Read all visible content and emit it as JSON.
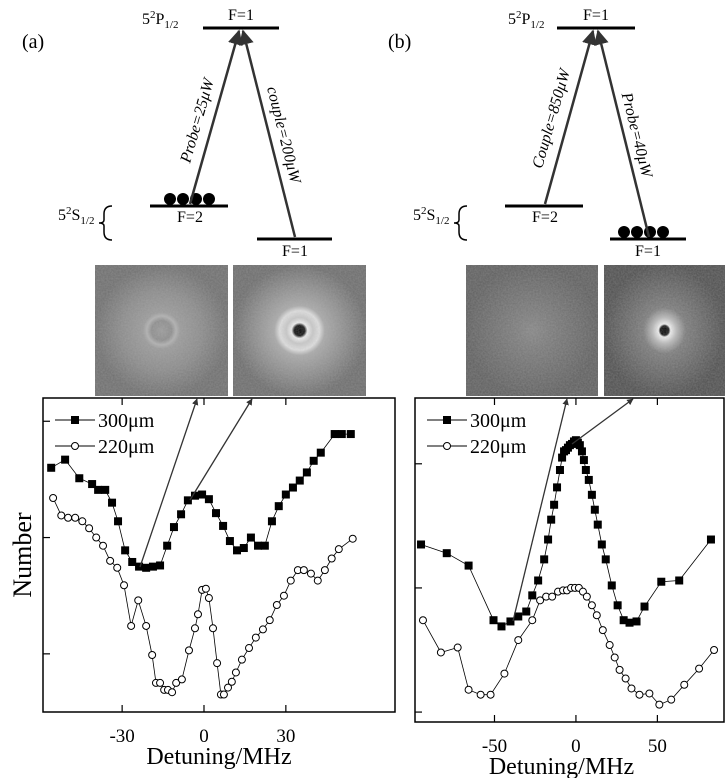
{
  "level_diagrams": [
    {
      "label": "(a)",
      "excited_state": {
        "n": "5",
        "sup": "2",
        "term": "P",
        "sub": "1/2"
      },
      "excited_level": "F=1",
      "ground_state": {
        "n": "5",
        "sup": "2",
        "term": "S",
        "sub": "1/2"
      },
      "ground_levels": [
        "F=2",
        "F=1"
      ],
      "beams": [
        "Probe=25μW",
        "couple=200μW"
      ]
    },
    {
      "label": "(b)",
      "excited_state": {
        "n": "5",
        "sup": "2",
        "term": "P",
        "sub": "1/2"
      },
      "excited_level": "F=1",
      "ground_state": {
        "n": "5",
        "sup": "2",
        "term": "S",
        "sub": "1/2"
      },
      "ground_levels": [
        "F=2",
        "F=1"
      ],
      "beams": [
        "Couple=850μW",
        "Probe=40μW"
      ]
    }
  ],
  "chart_data": [
    {
      "type": "line",
      "xlabel": "Detuning/MHz",
      "ylabel": "Number",
      "xlim": [
        -59,
        70
      ],
      "ylim": [
        0.5,
        3.2
      ],
      "xticks": [
        -30,
        0,
        30
      ],
      "yticks": [
        1,
        2,
        3
      ],
      "series": [
        {
          "name": "300μm",
          "color": "#000000",
          "marker": "square",
          "filled": true,
          "x": [
            -56,
            -50.9,
            -45.7,
            -41,
            -38.8,
            -36.2,
            -33.7,
            -31.5,
            -28.9,
            -26.3,
            -23.8,
            -21.2,
            -18.7,
            -16.1,
            -13.5,
            -11,
            -8.4,
            -5.9,
            -3.3,
            -0.7,
            1.8,
            4.4,
            7,
            9.5,
            12.1,
            14.6,
            17.2,
            19.8,
            22.3,
            24.9,
            27.4,
            30,
            32.6,
            35.1,
            37.7,
            40.2,
            42.8,
            47.9,
            50.5,
            53.8
          ],
          "values": [
            2.6,
            2.67,
            2.51,
            2.46,
            2.41,
            2.41,
            2.3,
            2.14,
            1.89,
            1.79,
            1.75,
            1.74,
            1.75,
            1.76,
            1.93,
            2.09,
            2.2,
            2.32,
            2.36,
            2.37,
            2.33,
            2.21,
            2.1,
            1.97,
            1.89,
            1.91,
            2.0,
            1.93,
            1.93,
            2.14,
            2.27,
            2.37,
            2.43,
            2.49,
            2.56,
            2.66,
            2.73,
            2.89,
            2.89,
            2.89
          ]
        },
        {
          "name": "220μm",
          "color": "#000000",
          "marker": "circle",
          "filled": false,
          "x": [
            -55.3,
            -52.3,
            -49.8,
            -47.2,
            -44.6,
            -42.1,
            -39.5,
            -37,
            -34.4,
            -31.8,
            -29.3,
            -26.7,
            -24.1,
            -21.2,
            -19,
            -17.6,
            -16.1,
            -14.6,
            -13.2,
            -11.7,
            -10.2,
            -8.1,
            -5.5,
            -3.3,
            -2.2,
            -0.7,
            0.7,
            1.8,
            3.3,
            4.8,
            6.2,
            7.3,
            8.8,
            10.2,
            11.7,
            13.9,
            16.5,
            19,
            21.6,
            24.1,
            26.7,
            29.3,
            31.8,
            34.4,
            36.6,
            39.2,
            41.7,
            44.3,
            46.8,
            49.4,
            54.5
          ],
          "values": [
            2.34,
            2.19,
            2.17,
            2.17,
            2.14,
            2.08,
            2.0,
            1.93,
            1.8,
            1.74,
            1.59,
            1.24,
            1.46,
            1.24,
            0.99,
            0.75,
            0.75,
            0.69,
            0.69,
            0.67,
            0.75,
            0.78,
            1.03,
            1.22,
            1.34,
            1.55,
            1.56,
            1.48,
            1.22,
            0.92,
            0.65,
            0.65,
            0.71,
            0.76,
            0.84,
            0.95,
            1.05,
            1.14,
            1.21,
            1.29,
            1.42,
            1.5,
            1.63,
            1.72,
            1.72,
            1.69,
            1.63,
            1.72,
            1.82,
            1.9,
            1.99
          ]
        }
      ]
    },
    {
      "type": "line",
      "xlabel": "Detuning/MHz",
      "xlim": [
        -98.8,
        90.9
      ],
      "ylim": [
        0.92,
        3.53
      ],
      "xticks": [
        -50,
        0,
        50
      ],
      "yticks": [
        1,
        2,
        3
      ],
      "series": [
        {
          "name": "300μm",
          "color": "#000000",
          "marker": "square",
          "filled": true,
          "x": [
            -95.1,
            -79.3,
            -65.9,
            -50.6,
            -45.7,
            -40.2,
            -35.4,
            -30.5,
            -26.8,
            -23.2,
            -19.5,
            -17.1,
            -15.2,
            -13.4,
            -11.6,
            -9.8,
            -8.5,
            -7.3,
            -6.1,
            -4.9,
            -3.7,
            -2.4,
            -1.2,
            0,
            1.2,
            2.4,
            3.7,
            4.9,
            6.1,
            7.9,
            9.8,
            11.6,
            13.4,
            15.9,
            18.3,
            22,
            25.6,
            29.3,
            32.9,
            37.2,
            42.1,
            52.4,
            63.4,
            82.9
          ],
          "values": [
            2.35,
            2.28,
            2.18,
            1.74,
            1.69,
            1.73,
            1.77,
            1.81,
            1.94,
            2.06,
            2.23,
            2.39,
            2.55,
            2.67,
            2.81,
            2.95,
            3.05,
            3.1,
            3.11,
            3.13,
            3.15,
            3.16,
            3.18,
            3.19,
            3.17,
            3.15,
            3.1,
            3.03,
            2.95,
            2.87,
            2.75,
            2.63,
            2.51,
            2.35,
            2.23,
            2.02,
            1.86,
            1.74,
            1.72,
            1.73,
            1.85,
            2.05,
            2.06,
            2.39
          ]
        },
        {
          "name": "220μm",
          "color": "#000000",
          "marker": "circle",
          "filled": false,
          "x": [
            -93.9,
            -82.9,
            -72.6,
            -65.9,
            -58.5,
            -52.4,
            -43.9,
            -35.4,
            -26.8,
            -22,
            -18.3,
            -14.6,
            -11,
            -7.9,
            -5.5,
            -3,
            -0.6,
            1.8,
            4.3,
            6.7,
            9.8,
            12.8,
            16.5,
            20.7,
            23.8,
            26.8,
            30.5,
            34.1,
            39,
            45.1,
            51.2,
            58.5,
            66.5,
            75.6,
            84.8
          ],
          "values": [
            1.74,
            1.48,
            1.52,
            1.18,
            1.14,
            1.14,
            1.31,
            1.58,
            1.74,
            1.9,
            1.93,
            1.93,
            1.97,
            1.98,
            1.98,
            2.0,
            2.0,
            2.0,
            1.97,
            1.93,
            1.86,
            1.78,
            1.66,
            1.54,
            1.44,
            1.34,
            1.27,
            1.19,
            1.14,
            1.15,
            1.06,
            1.1,
            1.22,
            1.35,
            1.5
          ]
        }
      ]
    }
  ]
}
